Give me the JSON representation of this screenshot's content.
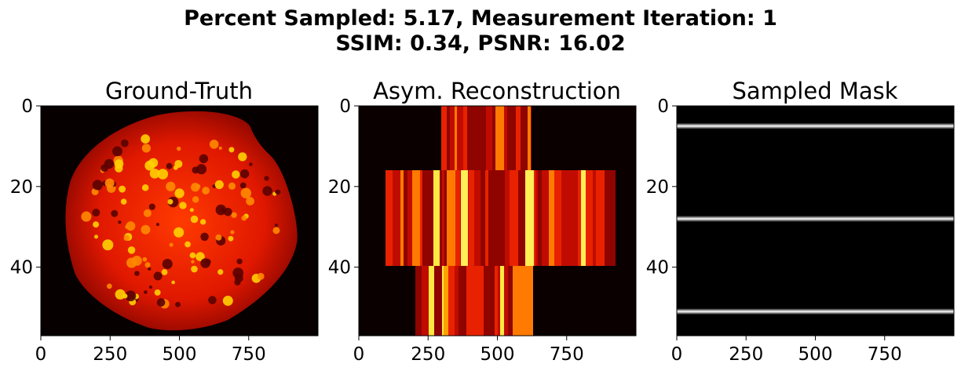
{
  "figure": {
    "suptitle_line1": "Percent Sampled: 5.17, Measurement Iteration: 1",
    "suptitle_line2": "SSIM: 0.34, PSNR: 16.02"
  },
  "chart_data": [
    {
      "type": "heatmap",
      "title": "Ground-Truth",
      "colormap": "hot",
      "xlim": [
        0,
        1000
      ],
      "ylim": [
        57,
        0
      ],
      "xticks": [
        0,
        250,
        500,
        750
      ],
      "yticks": [
        0,
        20,
        40
      ],
      "grid": false,
      "content": "cell image"
    },
    {
      "type": "heatmap",
      "title": "Asym. Reconstruction",
      "colormap": "hot",
      "xlim": [
        0,
        1000
      ],
      "ylim": [
        57,
        0
      ],
      "xticks": [
        0,
        250,
        500,
        750
      ],
      "yticks": [
        0,
        20,
        40
      ],
      "grid": false,
      "content": "vertical stripe reconstruction"
    },
    {
      "type": "heatmap",
      "title": "Sampled Mask",
      "colormap": "gray",
      "xlim": [
        0,
        1000
      ],
      "ylim": [
        57,
        0
      ],
      "xticks": [
        0,
        250,
        500,
        750
      ],
      "yticks": [
        0,
        20,
        40
      ],
      "grid": false,
      "sampled_rows": [
        5,
        28,
        51
      ]
    }
  ]
}
